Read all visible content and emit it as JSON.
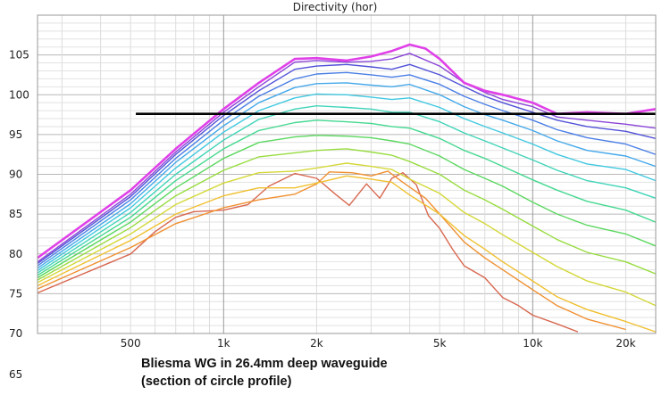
{
  "chart_data": {
    "type": "line",
    "title": "Directivity (hor)",
    "caption_line1": "Bliesma WG in 26.4mm deep waveguide",
    "caption_line2": "(section of circle profile)",
    "x_scale": "log",
    "xlim": [
      250,
      25000
    ],
    "ylim": [
      70,
      110
    ],
    "y_ticks": [
      65,
      70,
      75,
      80,
      85,
      90,
      95,
      100,
      105
    ],
    "x_ticks": [
      {
        "value": 500,
        "label": "500"
      },
      {
        "value": 1000,
        "label": "1k"
      },
      {
        "value": 2000,
        "label": "2k"
      },
      {
        "value": 5000,
        "label": "5k"
      },
      {
        "value": 10000,
        "label": "10k"
      },
      {
        "value": 20000,
        "label": "20k"
      }
    ],
    "grid": true,
    "reference_line": {
      "y": 97.6,
      "x_from": 520,
      "x_to": 25000,
      "color": "#000000"
    },
    "series": [
      {
        "color": "#e040e8",
        "points": [
          [
            250,
            79.5
          ],
          [
            500,
            88
          ],
          [
            700,
            93.2
          ],
          [
            1000,
            98.2
          ],
          [
            1300,
            101.5
          ],
          [
            1700,
            104.5
          ],
          [
            2000,
            104.6
          ],
          [
            2500,
            104.3
          ],
          [
            3000,
            104.8
          ],
          [
            3500,
            105.5
          ],
          [
            4000,
            106.3
          ],
          [
            4500,
            105.8
          ],
          [
            5000,
            104.5
          ],
          [
            6000,
            101.5
          ],
          [
            7000,
            100.5
          ],
          [
            8000,
            100
          ],
          [
            10000,
            99
          ],
          [
            12000,
            97.6
          ],
          [
            15000,
            97.8
          ],
          [
            20000,
            97.6
          ],
          [
            25000,
            98.2
          ]
        ]
      },
      {
        "color": "#8a44d8",
        "points": [
          [
            250,
            79
          ],
          [
            500,
            87.5
          ],
          [
            700,
            92.8
          ],
          [
            1000,
            97.8
          ],
          [
            1300,
            101
          ],
          [
            1700,
            104.1
          ],
          [
            2000,
            104.3
          ],
          [
            2500,
            104.1
          ],
          [
            3000,
            104.2
          ],
          [
            3500,
            104.5
          ],
          [
            4000,
            105.2
          ],
          [
            5000,
            103.6
          ],
          [
            6000,
            101.5
          ],
          [
            7000,
            100.3
          ],
          [
            8000,
            99.4
          ],
          [
            10000,
            98.5
          ],
          [
            12000,
            97.2
          ],
          [
            15000,
            96.8
          ],
          [
            20000,
            96.3
          ],
          [
            25000,
            95.8
          ]
        ]
      },
      {
        "color": "#5050d8",
        "points": [
          [
            250,
            78.8
          ],
          [
            500,
            87.2
          ],
          [
            700,
            92.5
          ],
          [
            1000,
            97.4
          ],
          [
            1300,
            100.5
          ],
          [
            1700,
            103.2
          ],
          [
            2000,
            103.6
          ],
          [
            2500,
            103.8
          ],
          [
            3000,
            103.5
          ],
          [
            3500,
            103.2
          ],
          [
            4000,
            103.8
          ],
          [
            5000,
            102.5
          ],
          [
            6000,
            101
          ],
          [
            7000,
            99.8
          ],
          [
            8000,
            99
          ],
          [
            10000,
            97.8
          ],
          [
            12000,
            96.8
          ],
          [
            15000,
            96
          ],
          [
            20000,
            95.4
          ],
          [
            25000,
            94.5
          ]
        ]
      },
      {
        "color": "#4a7ee6",
        "points": [
          [
            250,
            78.5
          ],
          [
            500,
            86.8
          ],
          [
            700,
            92
          ],
          [
            1000,
            96.8
          ],
          [
            1300,
            99.8
          ],
          [
            1700,
            102
          ],
          [
            2000,
            102.6
          ],
          [
            2500,
            102.8
          ],
          [
            3000,
            102.5
          ],
          [
            3500,
            102.2
          ],
          [
            4000,
            102.5
          ],
          [
            5000,
            101.3
          ],
          [
            6000,
            99.8
          ],
          [
            7000,
            98.8
          ],
          [
            8000,
            98
          ],
          [
            10000,
            96.8
          ],
          [
            12000,
            95.6
          ],
          [
            15000,
            94.6
          ],
          [
            20000,
            93.8
          ],
          [
            25000,
            92.5
          ]
        ]
      },
      {
        "color": "#44a8ea",
        "points": [
          [
            250,
            78.2
          ],
          [
            500,
            86.3
          ],
          [
            700,
            91.5
          ],
          [
            1000,
            96.1
          ],
          [
            1300,
            99
          ],
          [
            1700,
            100.9
          ],
          [
            2000,
            101.4
          ],
          [
            2500,
            101.5
          ],
          [
            3000,
            101.2
          ],
          [
            3500,
            101
          ],
          [
            4000,
            101.3
          ],
          [
            5000,
            100
          ],
          [
            6000,
            98.5
          ],
          [
            7000,
            97.5
          ],
          [
            8000,
            96.8
          ],
          [
            10000,
            95.5
          ],
          [
            12000,
            94.2
          ],
          [
            15000,
            93
          ],
          [
            20000,
            92.3
          ],
          [
            25000,
            91
          ]
        ]
      },
      {
        "color": "#40c8e0",
        "points": [
          [
            250,
            77.9
          ],
          [
            500,
            85.8
          ],
          [
            700,
            90.8
          ],
          [
            1000,
            95.3
          ],
          [
            1300,
            98
          ],
          [
            1700,
            99.6
          ],
          [
            2000,
            100.1
          ],
          [
            2500,
            100
          ],
          [
            3000,
            99.7
          ],
          [
            3500,
            99.4
          ],
          [
            4000,
            99.6
          ],
          [
            5000,
            98.4
          ],
          [
            6000,
            97
          ],
          [
            7000,
            96
          ],
          [
            8000,
            95.2
          ],
          [
            10000,
            93.8
          ],
          [
            12000,
            92.5
          ],
          [
            15000,
            91.3
          ],
          [
            20000,
            90.6
          ],
          [
            25000,
            89.2
          ]
        ]
      },
      {
        "color": "#40d4b8",
        "points": [
          [
            250,
            77.6
          ],
          [
            500,
            85.2
          ],
          [
            700,
            90
          ],
          [
            1000,
            94.3
          ],
          [
            1300,
            96.9
          ],
          [
            1700,
            98.2
          ],
          [
            2000,
            98.6
          ],
          [
            2500,
            98.4
          ],
          [
            3000,
            98.2
          ],
          [
            3500,
            97.8
          ],
          [
            4000,
            97.8
          ],
          [
            5000,
            96.6
          ],
          [
            6000,
            95.2
          ],
          [
            7000,
            94.2
          ],
          [
            8000,
            93.3
          ],
          [
            10000,
            91.8
          ],
          [
            12000,
            90.5
          ],
          [
            15000,
            89.2
          ],
          [
            20000,
            88.3
          ],
          [
            25000,
            87
          ]
        ]
      },
      {
        "color": "#44d890",
        "points": [
          [
            250,
            77.3
          ],
          [
            500,
            84.6
          ],
          [
            700,
            89.2
          ],
          [
            1000,
            93.2
          ],
          [
            1300,
            95.5
          ],
          [
            1700,
            96.5
          ],
          [
            2000,
            96.8
          ],
          [
            2500,
            96.6
          ],
          [
            3000,
            96.4
          ],
          [
            3500,
            96
          ],
          [
            4000,
            95.8
          ],
          [
            5000,
            94.5
          ],
          [
            6000,
            93
          ],
          [
            7000,
            92
          ],
          [
            8000,
            91
          ],
          [
            10000,
            89.3
          ],
          [
            12000,
            88
          ],
          [
            15000,
            86.6
          ],
          [
            20000,
            85.5
          ],
          [
            25000,
            84
          ]
        ]
      },
      {
        "color": "#5cd860",
        "points": [
          [
            250,
            77
          ],
          [
            500,
            84
          ],
          [
            700,
            88.3
          ],
          [
            1000,
            92
          ],
          [
            1300,
            94
          ],
          [
            1700,
            94.7
          ],
          [
            2000,
            94.9
          ],
          [
            2500,
            94.8
          ],
          [
            3000,
            94.6
          ],
          [
            3500,
            94.2
          ],
          [
            4000,
            93.8
          ],
          [
            5000,
            92.3
          ],
          [
            6000,
            90.6
          ],
          [
            7000,
            89.5
          ],
          [
            8000,
            88.5
          ],
          [
            10000,
            86.5
          ],
          [
            12000,
            85
          ],
          [
            15000,
            83.6
          ],
          [
            20000,
            82.5
          ],
          [
            25000,
            81
          ]
        ]
      },
      {
        "color": "#98dc40",
        "points": [
          [
            250,
            76.7
          ],
          [
            500,
            83.3
          ],
          [
            700,
            87.3
          ],
          [
            1000,
            90.5
          ],
          [
            1300,
            92.2
          ],
          [
            1700,
            92.7
          ],
          [
            2000,
            93
          ],
          [
            2500,
            93.2
          ],
          [
            3000,
            92.8
          ],
          [
            3500,
            92.4
          ],
          [
            4000,
            91.6
          ],
          [
            5000,
            90
          ],
          [
            6000,
            88
          ],
          [
            7000,
            86.8
          ],
          [
            8000,
            85.6
          ],
          [
            10000,
            83.5
          ],
          [
            12000,
            81.8
          ],
          [
            15000,
            80.2
          ],
          [
            20000,
            79
          ],
          [
            25000,
            77.5
          ]
        ]
      },
      {
        "color": "#d4d838",
        "points": [
          [
            250,
            76.4
          ],
          [
            500,
            82.5
          ],
          [
            700,
            86.2
          ],
          [
            1000,
            88.9
          ],
          [
            1300,
            90.2
          ],
          [
            1700,
            90.4
          ],
          [
            2000,
            90.8
          ],
          [
            2500,
            91.4
          ],
          [
            3000,
            91
          ],
          [
            3500,
            90.6
          ],
          [
            4000,
            89.4
          ],
          [
            5000,
            87.6
          ],
          [
            6000,
            85.2
          ],
          [
            7000,
            83.8
          ],
          [
            8000,
            82.4
          ],
          [
            10000,
            80.2
          ],
          [
            12000,
            78.4
          ],
          [
            15000,
            76.6
          ],
          [
            20000,
            75.2
          ],
          [
            25000,
            73.5
          ]
        ]
      },
      {
        "color": "#f0c030",
        "points": [
          [
            250,
            76
          ],
          [
            500,
            81.7
          ],
          [
            700,
            85
          ],
          [
            1000,
            87.3
          ],
          [
            1300,
            88.3
          ],
          [
            1700,
            88.3
          ],
          [
            2000,
            88.9
          ],
          [
            2500,
            89.8
          ],
          [
            3000,
            89.4
          ],
          [
            3500,
            89
          ],
          [
            4000,
            87.4
          ],
          [
            5000,
            85
          ],
          [
            6000,
            82.3
          ],
          [
            7000,
            80.6
          ],
          [
            8000,
            79
          ],
          [
            10000,
            76.6
          ],
          [
            12000,
            74.6
          ],
          [
            15000,
            73
          ],
          [
            20000,
            71.5
          ],
          [
            25000,
            70.2
          ]
        ]
      },
      {
        "color": "#f09030",
        "points": [
          [
            250,
            75.6
          ],
          [
            500,
            80.8
          ],
          [
            700,
            83.8
          ],
          [
            1000,
            85.8
          ],
          [
            1300,
            86.8
          ],
          [
            1700,
            87.5
          ],
          [
            2000,
            88.8
          ],
          [
            2200,
            90.3
          ],
          [
            2600,
            90.2
          ],
          [
            3000,
            89.8
          ],
          [
            3400,
            90.4
          ],
          [
            3800,
            89
          ],
          [
            4500,
            87
          ],
          [
            5000,
            85
          ],
          [
            6000,
            81.5
          ],
          [
            7000,
            79.5
          ],
          [
            8000,
            78
          ],
          [
            10000,
            75.5
          ],
          [
            12000,
            73.5
          ],
          [
            15000,
            71.8
          ],
          [
            20000,
            70.5
          ]
        ]
      },
      {
        "color": "#d86850",
        "points": [
          [
            250,
            75.1
          ],
          [
            500,
            80
          ],
          [
            600,
            82.8
          ],
          [
            700,
            84.6
          ],
          [
            800,
            85.3
          ],
          [
            1000,
            85.5
          ],
          [
            1200,
            86.2
          ],
          [
            1400,
            88.5
          ],
          [
            1700,
            90.1
          ],
          [
            2000,
            89.5
          ],
          [
            2300,
            87.5
          ],
          [
            2550,
            86.1
          ],
          [
            2900,
            88.8
          ],
          [
            3200,
            87
          ],
          [
            3500,
            89.5
          ],
          [
            3800,
            90.2
          ],
          [
            4200,
            88.7
          ],
          [
            4600,
            84.8
          ],
          [
            5000,
            83.2
          ],
          [
            5500,
            80.6
          ],
          [
            6000,
            78.5
          ],
          [
            7000,
            77
          ],
          [
            8000,
            74.5
          ],
          [
            9000,
            73.5
          ],
          [
            10000,
            72.3
          ],
          [
            12000,
            71.2
          ],
          [
            14000,
            70.2
          ]
        ]
      }
    ]
  }
}
